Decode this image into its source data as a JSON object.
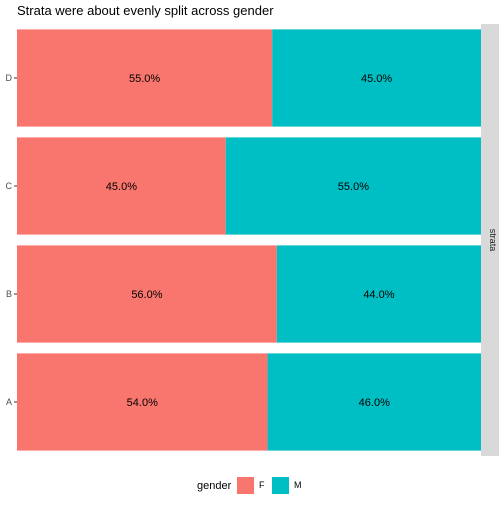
{
  "chart_data": {
    "type": "bar",
    "orientation": "horizontal",
    "stacked": "percent",
    "title": "Strata were about evenly split across gender",
    "categories": [
      "A",
      "B",
      "C",
      "D"
    ],
    "series": [
      {
        "name": "F",
        "values": [
          54,
          56,
          45,
          55
        ],
        "labels": [
          "54.0%",
          "56.0%",
          "45.0%",
          "55.0%"
        ]
      },
      {
        "name": "M",
        "values": [
          46,
          44,
          55,
          45
        ],
        "labels": [
          "46.0%",
          "44.0%",
          "55.0%",
          "45.0%"
        ]
      }
    ],
    "xlim": [
      0,
      100
    ],
    "facet_strip_label": "strata",
    "legend": {
      "title": "gender",
      "position": "bottom"
    },
    "colors": {
      "F": "#F8766D",
      "M": "#00BFC4",
      "strip": "#D9D9D9"
    },
    "grid": false
  }
}
